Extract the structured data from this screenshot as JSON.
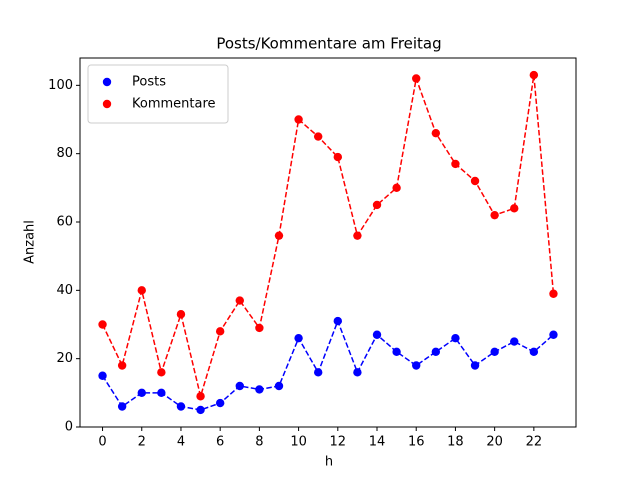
{
  "chart_data": {
    "type": "line",
    "title": "Posts/Kommentare am Freitag",
    "xlabel": "h",
    "ylabel": "Anzahl",
    "x": [
      0,
      1,
      2,
      3,
      4,
      5,
      6,
      7,
      8,
      9,
      10,
      11,
      12,
      13,
      14,
      15,
      16,
      17,
      18,
      19,
      20,
      21,
      22,
      23
    ],
    "series": [
      {
        "name": "Posts",
        "color": "#0000ff",
        "values": [
          15,
          6,
          10,
          10,
          6,
          5,
          7,
          12,
          11,
          12,
          26,
          16,
          31,
          16,
          27,
          22,
          18,
          22,
          26,
          18,
          22,
          25,
          22,
          27
        ]
      },
      {
        "name": "Kommentare",
        "color": "#ff0000",
        "values": [
          30,
          18,
          40,
          16,
          33,
          9,
          28,
          37,
          29,
          56,
          90,
          85,
          79,
          56,
          65,
          70,
          102,
          86,
          77,
          72,
          62,
          64,
          103,
          39
        ]
      }
    ],
    "xlim": [
      -1.15,
      24.15
    ],
    "ylim": [
      0,
      108
    ],
    "xticks": [
      0,
      2,
      4,
      6,
      8,
      10,
      12,
      14,
      16,
      18,
      20,
      22
    ],
    "yticks": [
      0,
      20,
      40,
      60,
      80,
      100
    ],
    "legend": "upper left",
    "linestyle": "dashed",
    "marker": "circle"
  }
}
